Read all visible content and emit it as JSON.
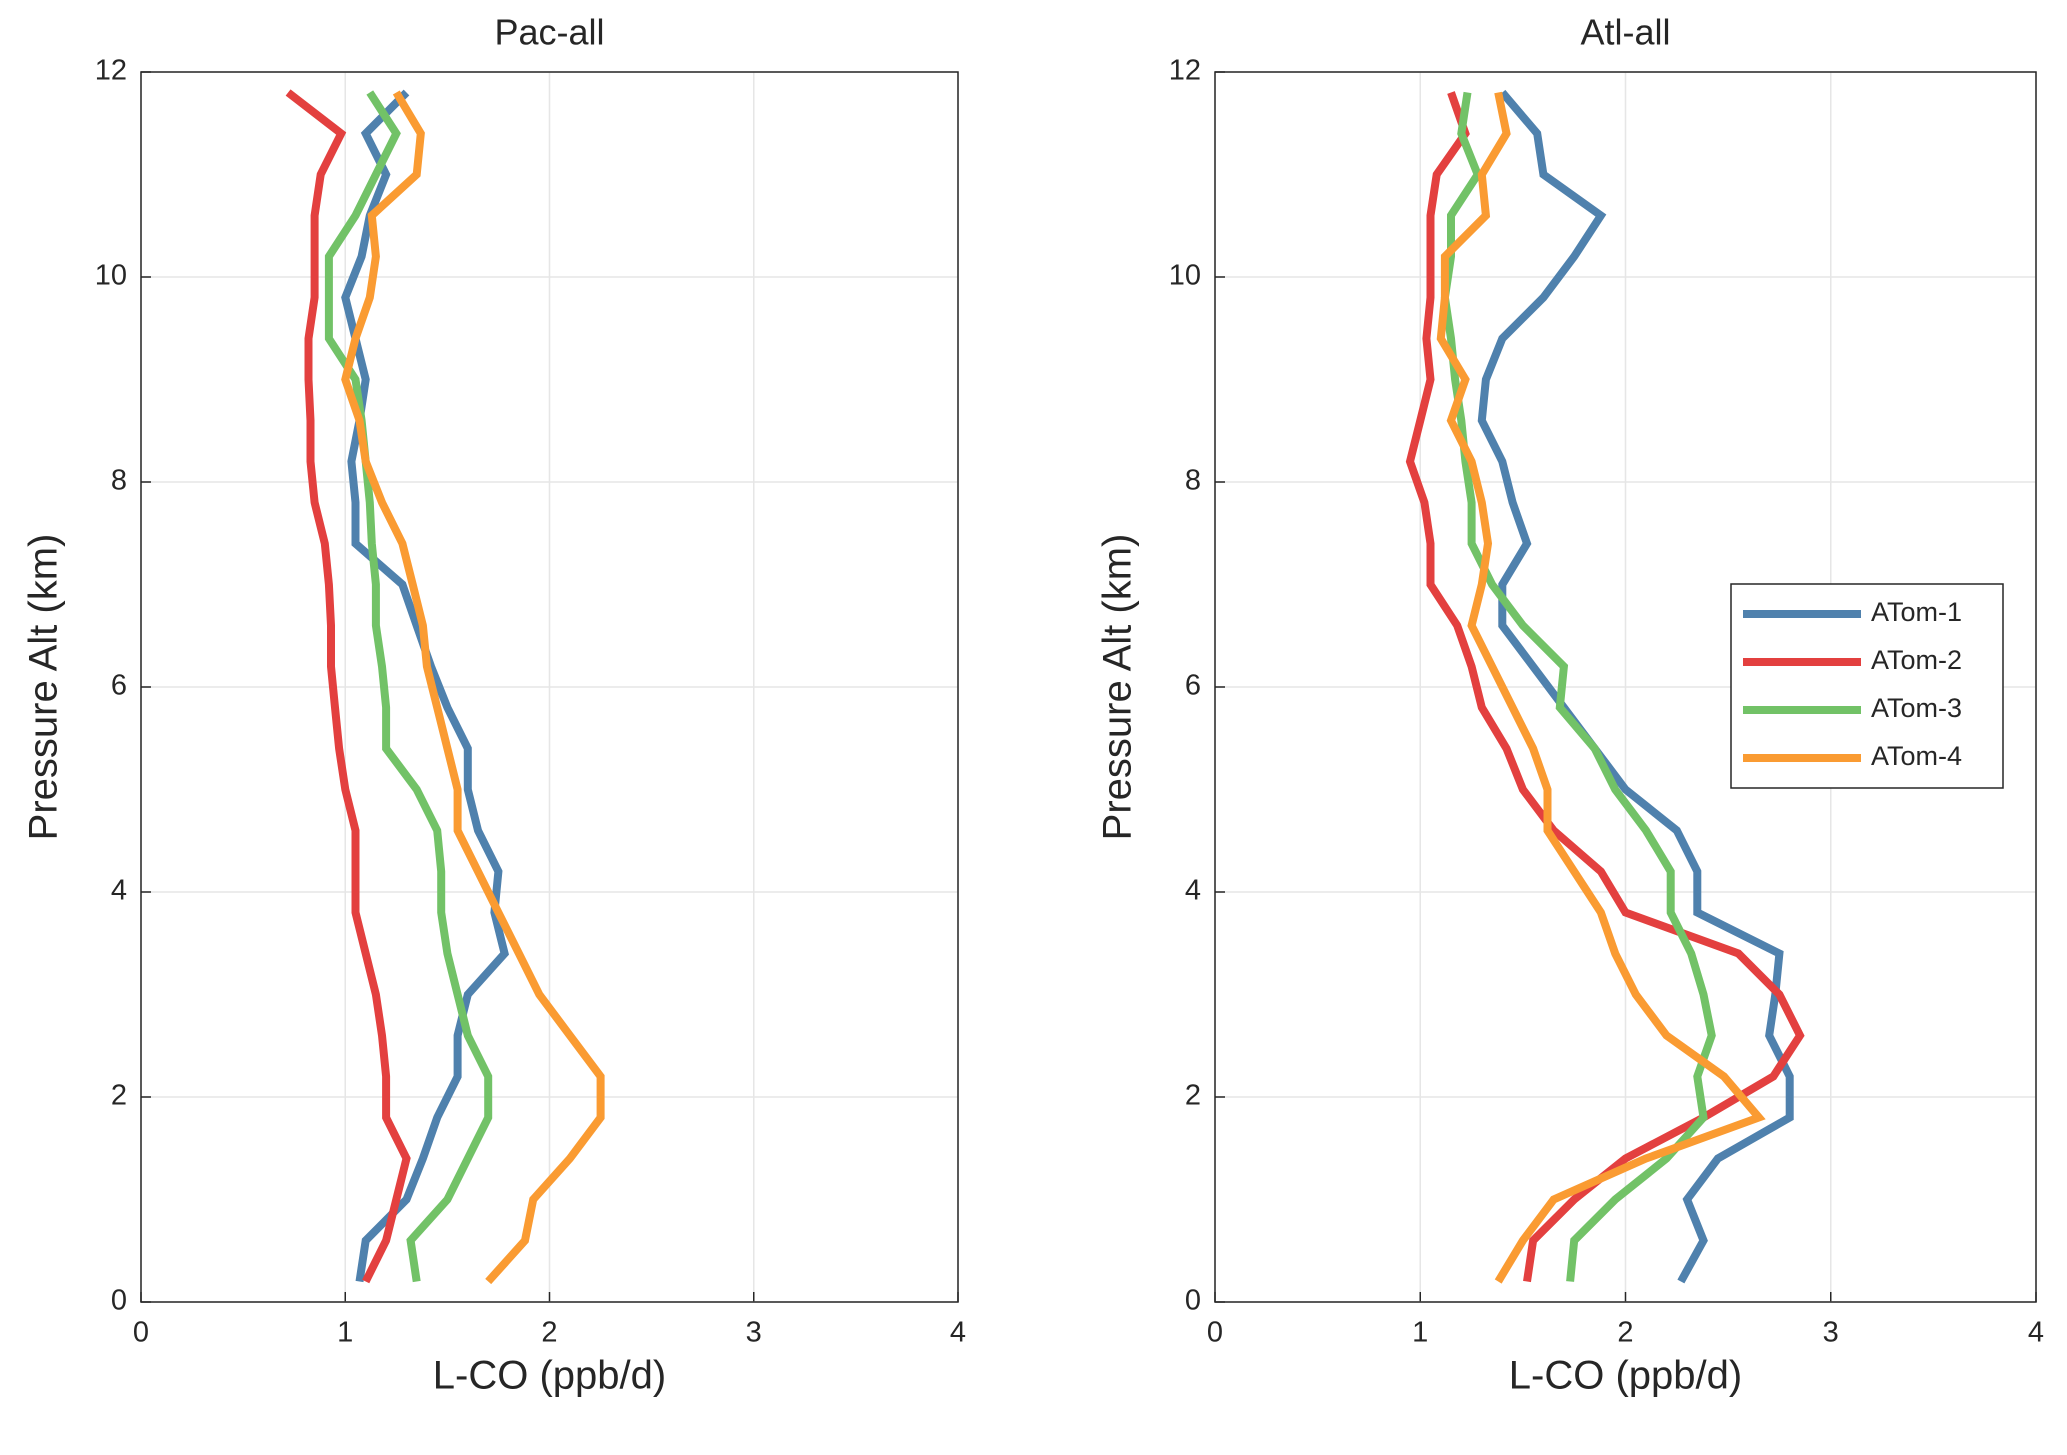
{
  "chart_data": [
    {
      "type": "line",
      "title": "Pac-all",
      "xlabel": "L-CO  (ppb/d)",
      "ylabel": "Pressure Alt (km)",
      "y": [
        0.2,
        0.6,
        1.0,
        1.4,
        1.8,
        2.2,
        2.6,
        3.0,
        3.4,
        3.8,
        4.2,
        4.6,
        5.0,
        5.4,
        5.8,
        6.2,
        6.6,
        7.0,
        7.4,
        7.8,
        8.2,
        8.6,
        9.0,
        9.4,
        9.8,
        10.2,
        10.6,
        11.0,
        11.4,
        11.8
      ],
      "series": [
        {
          "name": "ATom-1",
          "color": "#4f81ad",
          "values": [
            1.07,
            1.1,
            1.3,
            1.38,
            1.45,
            1.55,
            1.55,
            1.6,
            1.78,
            1.73,
            1.75,
            1.65,
            1.6,
            1.6,
            1.5,
            1.42,
            1.35,
            1.28,
            1.05,
            1.05,
            1.03,
            1.07,
            1.1,
            1.05,
            1.0,
            1.08,
            1.12,
            1.2,
            1.1,
            1.3
          ]
        },
        {
          "name": "ATom-2",
          "color": "#e3403f",
          "values": [
            1.1,
            1.2,
            1.25,
            1.3,
            1.2,
            1.2,
            1.18,
            1.15,
            1.1,
            1.05,
            1.05,
            1.05,
            1.0,
            0.97,
            0.95,
            0.93,
            0.93,
            0.92,
            0.9,
            0.85,
            0.83,
            0.83,
            0.82,
            0.82,
            0.85,
            0.85,
            0.85,
            0.88,
            0.98,
            0.72
          ]
        },
        {
          "name": "ATom-3",
          "color": "#72c267",
          "values": [
            1.35,
            1.32,
            1.5,
            1.6,
            1.7,
            1.7,
            1.6,
            1.55,
            1.5,
            1.47,
            1.47,
            1.45,
            1.35,
            1.2,
            1.2,
            1.18,
            1.15,
            1.15,
            1.13,
            1.12,
            1.1,
            1.08,
            1.05,
            0.92,
            0.92,
            0.92,
            1.05,
            1.15,
            1.25,
            1.12
          ]
        },
        {
          "name": "ATom-4",
          "color": "#fa9b32",
          "values": [
            1.7,
            1.88,
            1.92,
            2.1,
            2.25,
            2.25,
            2.1,
            1.95,
            1.85,
            1.75,
            1.65,
            1.55,
            1.55,
            1.5,
            1.45,
            1.4,
            1.38,
            1.33,
            1.28,
            1.18,
            1.1,
            1.07,
            1.0,
            1.05,
            1.12,
            1.15,
            1.13,
            1.35,
            1.37,
            1.25
          ]
        }
      ],
      "xlim": [
        0,
        4
      ],
      "ylim": [
        0,
        12
      ],
      "xticks": [
        0,
        1,
        2,
        3,
        4
      ],
      "yticks": [
        0,
        2,
        4,
        6,
        8,
        10,
        12
      ],
      "grid": true
    },
    {
      "type": "line",
      "title": "Atl-all",
      "xlabel": "L-CO  (ppb/d)",
      "ylabel": "Pressure Alt (km)",
      "y": [
        0.2,
        0.6,
        1.0,
        1.4,
        1.8,
        2.2,
        2.6,
        3.0,
        3.4,
        3.8,
        4.2,
        4.6,
        5.0,
        5.4,
        5.8,
        6.2,
        6.6,
        7.0,
        7.4,
        7.8,
        8.2,
        8.6,
        9.0,
        9.4,
        9.8,
        10.2,
        10.6,
        11.0,
        11.4,
        11.8
      ],
      "series": [
        {
          "name": "ATom-1",
          "color": "#4f81ad",
          "values": [
            2.27,
            2.38,
            2.3,
            2.45,
            2.8,
            2.8,
            2.7,
            2.73,
            2.75,
            2.35,
            2.35,
            2.25,
            2.0,
            1.85,
            1.7,
            1.55,
            1.4,
            1.4,
            1.52,
            1.45,
            1.4,
            1.3,
            1.32,
            1.4,
            1.6,
            1.75,
            1.88,
            1.6,
            1.57,
            1.4
          ]
        },
        {
          "name": "ATom-2",
          "color": "#e3403f",
          "values": [
            1.52,
            1.55,
            1.75,
            2.0,
            2.38,
            2.72,
            2.85,
            2.75,
            2.55,
            2.0,
            1.88,
            1.65,
            1.5,
            1.42,
            1.3,
            1.25,
            1.18,
            1.05,
            1.05,
            1.02,
            0.95,
            1.0,
            1.05,
            1.03,
            1.05,
            1.05,
            1.05,
            1.08,
            1.22,
            1.15
          ]
        },
        {
          "name": "ATom-3",
          "color": "#72c267",
          "values": [
            1.73,
            1.75,
            1.95,
            2.2,
            2.38,
            2.35,
            2.42,
            2.38,
            2.32,
            2.22,
            2.22,
            2.1,
            1.95,
            1.85,
            1.68,
            1.7,
            1.5,
            1.35,
            1.25,
            1.25,
            1.22,
            1.2,
            1.17,
            1.15,
            1.12,
            1.15,
            1.15,
            1.28,
            1.2,
            1.23
          ]
        },
        {
          "name": "ATom-4",
          "color": "#fa9b32",
          "values": [
            1.38,
            1.5,
            1.65,
            2.1,
            2.65,
            2.48,
            2.2,
            2.05,
            1.95,
            1.88,
            1.75,
            1.62,
            1.62,
            1.55,
            1.45,
            1.35,
            1.25,
            1.3,
            1.33,
            1.3,
            1.25,
            1.15,
            1.22,
            1.1,
            1.12,
            1.12,
            1.32,
            1.3,
            1.42,
            1.38
          ]
        }
      ],
      "xlim": [
        0,
        4
      ],
      "ylim": [
        0,
        12
      ],
      "xticks": [
        0,
        1,
        2,
        3,
        4
      ],
      "yticks": [
        0,
        2,
        4,
        6,
        8,
        10,
        12
      ],
      "grid": true,
      "legend": "east"
    }
  ]
}
